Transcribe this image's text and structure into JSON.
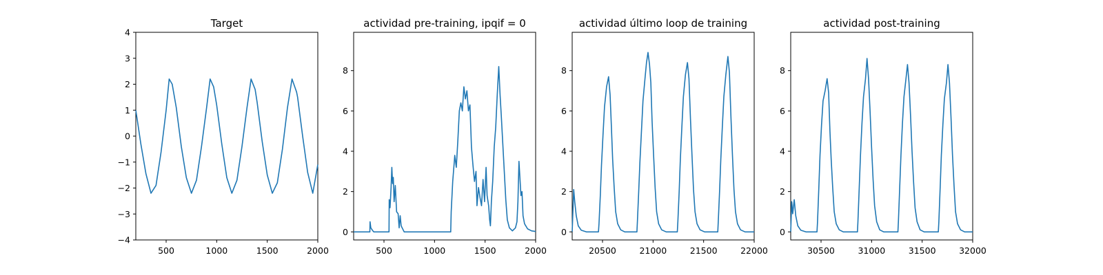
{
  "chart_data": [
    {
      "type": "line",
      "title": "Target",
      "xlim": [
        200,
        2000
      ],
      "ylim": [
        -4,
        4
      ],
      "xticks": [
        500,
        1000,
        1500,
        2000
      ],
      "yticks": [
        -4,
        -3,
        -2,
        -1,
        0,
        1,
        2,
        3,
        4
      ],
      "series": [
        {
          "color": "#1f77b4",
          "points": [
            [
              200,
              1.0
            ],
            [
              250,
              -0.3
            ],
            [
              300,
              -1.45
            ],
            [
              350,
              -2.2
            ],
            [
              400,
              -1.9
            ],
            [
              450,
              -0.6
            ],
            [
              500,
              1.0
            ],
            [
              530,
              2.2
            ],
            [
              560,
              2.0
            ],
            [
              600,
              1.1
            ],
            [
              650,
              -0.4
            ],
            [
              700,
              -1.6
            ],
            [
              750,
              -2.2
            ],
            [
              800,
              -1.7
            ],
            [
              850,
              -0.4
            ],
            [
              900,
              1.1
            ],
            [
              935,
              2.2
            ],
            [
              970,
              1.9
            ],
            [
              1000,
              1.2
            ],
            [
              1050,
              -0.3
            ],
            [
              1100,
              -1.6
            ],
            [
              1150,
              -2.2
            ],
            [
              1200,
              -1.7
            ],
            [
              1250,
              -0.4
            ],
            [
              1300,
              1.1
            ],
            [
              1340,
              2.2
            ],
            [
              1380,
              1.8
            ],
            [
              1400,
              1.3
            ],
            [
              1450,
              -0.2
            ],
            [
              1500,
              -1.5
            ],
            [
              1550,
              -2.2
            ],
            [
              1600,
              -1.8
            ],
            [
              1650,
              -0.5
            ],
            [
              1700,
              1.1
            ],
            [
              1745,
              2.2
            ],
            [
              1790,
              1.7
            ],
            [
              1800,
              1.5
            ],
            [
              1850,
              0.0
            ],
            [
              1900,
              -1.4
            ],
            [
              1950,
              -2.2
            ],
            [
              2000,
              -1.1
            ]
          ]
        }
      ]
    },
    {
      "type": "line",
      "title": "actividad pre-training, ipqif = 0",
      "xlim": [
        200,
        2000
      ],
      "ylim": [
        -0.4,
        9.9
      ],
      "xticks": [
        500,
        1000,
        1500,
        2000
      ],
      "yticks": [
        0,
        2,
        4,
        6,
        8
      ],
      "series": [
        {
          "color": "#1f77b4",
          "points": [
            [
              200,
              0
            ],
            [
              360,
              0
            ],
            [
              362,
              0.5
            ],
            [
              370,
              0.2
            ],
            [
              390,
              0.05
            ],
            [
              400,
              0
            ],
            [
              550,
              0
            ],
            [
              552,
              1.6
            ],
            [
              560,
              1.2
            ],
            [
              570,
              2.2
            ],
            [
              578,
              3.2
            ],
            [
              585,
              2.4
            ],
            [
              592,
              2.7
            ],
            [
              600,
              1.5
            ],
            [
              612,
              2.3
            ],
            [
              625,
              1.0
            ],
            [
              640,
              0.9
            ],
            [
              650,
              0.2
            ],
            [
              660,
              0.8
            ],
            [
              670,
              0.3
            ],
            [
              700,
              0
            ],
            [
              1160,
              0
            ],
            [
              1165,
              1.0
            ],
            [
              1180,
              2.5
            ],
            [
              1200,
              3.8
            ],
            [
              1215,
              3.2
            ],
            [
              1230,
              4.5
            ],
            [
              1245,
              6.0
            ],
            [
              1260,
              6.4
            ],
            [
              1275,
              6.0
            ],
            [
              1290,
              7.2
            ],
            [
              1305,
              6.6
            ],
            [
              1320,
              7.0
            ],
            [
              1335,
              6.0
            ],
            [
              1350,
              6.3
            ],
            [
              1365,
              4.2
            ],
            [
              1380,
              3.3
            ],
            [
              1395,
              2.5
            ],
            [
              1410,
              3.0
            ],
            [
              1420,
              1.3
            ],
            [
              1435,
              2.2
            ],
            [
              1450,
              1.7
            ],
            [
              1465,
              1.3
            ],
            [
              1480,
              2.6
            ],
            [
              1495,
              1.5
            ],
            [
              1510,
              3.2
            ],
            [
              1520,
              1.8
            ],
            [
              1535,
              1.3
            ],
            [
              1545,
              0.6
            ],
            [
              1553,
              0.3
            ],
            [
              1562,
              1.5
            ],
            [
              1575,
              2.5
            ],
            [
              1590,
              4.2
            ],
            [
              1605,
              5.2
            ],
            [
              1620,
              6.8
            ],
            [
              1635,
              8.2
            ],
            [
              1648,
              6.8
            ],
            [
              1660,
              5.8
            ],
            [
              1675,
              4.4
            ],
            [
              1690,
              3.0
            ],
            [
              1705,
              1.6
            ],
            [
              1720,
              0.6
            ],
            [
              1740,
              0.2
            ],
            [
              1770,
              0.05
            ],
            [
              1800,
              0.2
            ],
            [
              1815,
              0.5
            ],
            [
              1825,
              1.5
            ],
            [
              1835,
              3.5
            ],
            [
              1843,
              2.8
            ],
            [
              1855,
              1.8
            ],
            [
              1865,
              2.0
            ],
            [
              1875,
              0.8
            ],
            [
              1890,
              0.4
            ],
            [
              1920,
              0.15
            ],
            [
              1960,
              0.05
            ],
            [
              2000,
              0.02
            ]
          ]
        }
      ]
    },
    {
      "type": "line",
      "title": "actividad último loop de training",
      "xlim": [
        20200,
        22000
      ],
      "ylim": [
        -0.4,
        9.9
      ],
      "xticks": [
        20500,
        21000,
        21500,
        22000
      ],
      "yticks": [
        0,
        2,
        4,
        6,
        8
      ],
      "series": [
        {
          "color": "#1f77b4",
          "points": [
            [
              20200,
              0
            ],
            [
              20215,
              2.1
            ],
            [
              20225,
              1.5
            ],
            [
              20240,
              0.8
            ],
            [
              20260,
              0.3
            ],
            [
              20290,
              0.08
            ],
            [
              20340,
              0
            ],
            [
              20460,
              0
            ],
            [
              20465,
              0.4
            ],
            [
              20478,
              1.8
            ],
            [
              20490,
              3.3
            ],
            [
              20505,
              4.8
            ],
            [
              20520,
              6.2
            ],
            [
              20540,
              7.2
            ],
            [
              20560,
              7.7
            ],
            [
              20575,
              6.8
            ],
            [
              20588,
              5.2
            ],
            [
              20600,
              3.6
            ],
            [
              20615,
              2.2
            ],
            [
              20630,
              1.0
            ],
            [
              20650,
              0.4
            ],
            [
              20680,
              0.1
            ],
            [
              20720,
              0
            ],
            [
              20840,
              0
            ],
            [
              20845,
              0.5
            ],
            [
              20858,
              2.0
            ],
            [
              20870,
              3.5
            ],
            [
              20885,
              5.0
            ],
            [
              20900,
              6.5
            ],
            [
              20920,
              7.6
            ],
            [
              20935,
              8.4
            ],
            [
              20950,
              8.9
            ],
            [
              20965,
              8.3
            ],
            [
              20978,
              7.4
            ],
            [
              20990,
              5.5
            ],
            [
              21005,
              3.8
            ],
            [
              21020,
              2.2
            ],
            [
              21035,
              1.0
            ],
            [
              21055,
              0.4
            ],
            [
              21085,
              0.1
            ],
            [
              21130,
              0
            ],
            [
              21240,
              0
            ],
            [
              21245,
              0.5
            ],
            [
              21258,
              2.0
            ],
            [
              21270,
              3.6
            ],
            [
              21285,
              5.2
            ],
            [
              21300,
              6.7
            ],
            [
              21320,
              7.8
            ],
            [
              21340,
              8.4
            ],
            [
              21355,
              7.6
            ],
            [
              21370,
              5.6
            ],
            [
              21385,
              3.8
            ],
            [
              21400,
              2.1
            ],
            [
              21415,
              1.0
            ],
            [
              21435,
              0.4
            ],
            [
              21465,
              0.1
            ],
            [
              21510,
              0
            ],
            [
              21640,
              0
            ],
            [
              21645,
              0.5
            ],
            [
              21658,
              2.0
            ],
            [
              21670,
              3.6
            ],
            [
              21685,
              5.2
            ],
            [
              21700,
              6.7
            ],
            [
              21720,
              7.8
            ],
            [
              21740,
              8.7
            ],
            [
              21755,
              7.9
            ],
            [
              21770,
              5.7
            ],
            [
              21785,
              3.8
            ],
            [
              21800,
              2.1
            ],
            [
              21815,
              1.0
            ],
            [
              21835,
              0.4
            ],
            [
              21865,
              0.1
            ],
            [
              21910,
              0
            ],
            [
              22000,
              0
            ]
          ]
        }
      ]
    },
    {
      "type": "line",
      "title": "actividad post-training",
      "xlim": [
        30200,
        32000
      ],
      "ylim": [
        -0.4,
        9.9
      ],
      "xticks": [
        30500,
        31000,
        31500,
        32000
      ],
      "yticks": [
        0,
        2,
        4,
        6,
        8
      ],
      "series": [
        {
          "color": "#1f77b4",
          "points": [
            [
              30200,
              0
            ],
            [
              30210,
              1.5
            ],
            [
              30220,
              0.9
            ],
            [
              30235,
              1.6
            ],
            [
              30250,
              0.8
            ],
            [
              30270,
              0.3
            ],
            [
              30300,
              0.08
            ],
            [
              30350,
              0
            ],
            [
              30460,
              0
            ],
            [
              30465,
              0.5
            ],
            [
              30478,
              2.2
            ],
            [
              30490,
              3.8
            ],
            [
              30505,
              5.3
            ],
            [
              30520,
              6.5
            ],
            [
              30540,
              7.0
            ],
            [
              30560,
              7.6
            ],
            [
              30575,
              6.9
            ],
            [
              30588,
              5.0
            ],
            [
              30600,
              3.6
            ],
            [
              30615,
              2.2
            ],
            [
              30630,
              1.0
            ],
            [
              30650,
              0.4
            ],
            [
              30680,
              0.1
            ],
            [
              30720,
              0
            ],
            [
              30860,
              0
            ],
            [
              30865,
              0.5
            ],
            [
              30878,
              2.2
            ],
            [
              30890,
              3.8
            ],
            [
              30905,
              5.4
            ],
            [
              30920,
              6.7
            ],
            [
              30940,
              7.6
            ],
            [
              30955,
              8.6
            ],
            [
              30970,
              7.6
            ],
            [
              30985,
              6.0
            ],
            [
              31000,
              4.2
            ],
            [
              31015,
              2.6
            ],
            [
              31030,
              1.3
            ],
            [
              31050,
              0.5
            ],
            [
              31080,
              0.1
            ],
            [
              31120,
              0
            ],
            [
              31260,
              0
            ],
            [
              31265,
              0.5
            ],
            [
              31278,
              2.2
            ],
            [
              31290,
              3.8
            ],
            [
              31305,
              5.4
            ],
            [
              31320,
              6.7
            ],
            [
              31340,
              7.6
            ],
            [
              31355,
              8.3
            ],
            [
              31370,
              7.4
            ],
            [
              31385,
              5.8
            ],
            [
              31400,
              4.0
            ],
            [
              31415,
              2.5
            ],
            [
              31430,
              1.2
            ],
            [
              31450,
              0.5
            ],
            [
              31480,
              0.1
            ],
            [
              31520,
              0
            ],
            [
              31660,
              0
            ],
            [
              31665,
              0.5
            ],
            [
              31678,
              2.2
            ],
            [
              31690,
              3.8
            ],
            [
              31705,
              5.3
            ],
            [
              31720,
              6.6
            ],
            [
              31740,
              7.4
            ],
            [
              31755,
              8.3
            ],
            [
              31770,
              7.4
            ],
            [
              31785,
              5.7
            ],
            [
              31800,
              3.8
            ],
            [
              31815,
              2.3
            ],
            [
              31830,
              1.0
            ],
            [
              31850,
              0.4
            ],
            [
              31880,
              0.1
            ],
            [
              31920,
              0
            ],
            [
              32000,
              0
            ]
          ]
        }
      ]
    }
  ]
}
